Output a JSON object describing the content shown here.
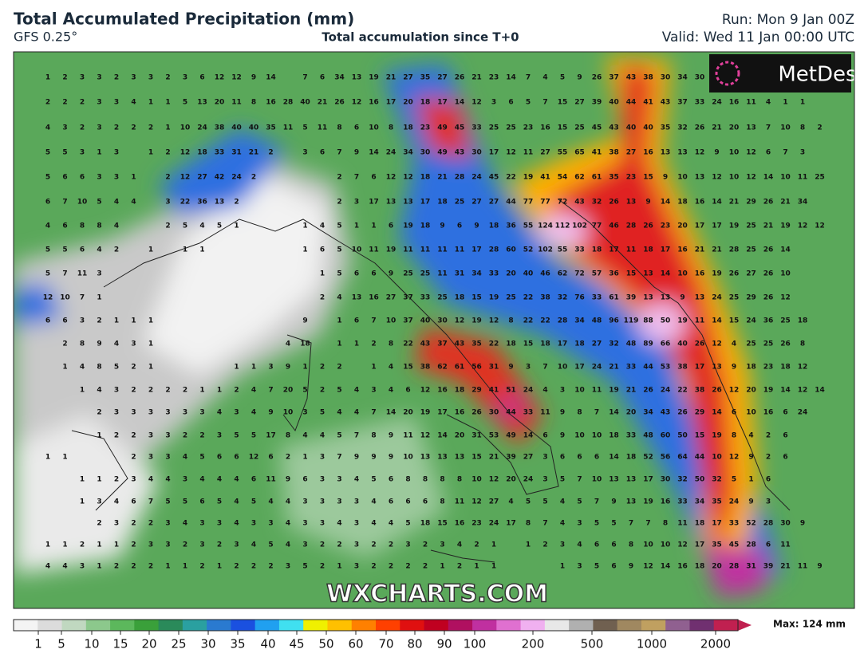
{
  "header": {
    "title": "Total Accumulated Precipitation (mm)",
    "model": "GFS 0.25°",
    "subtitle": "Total accumulation since T+0",
    "run": "Run: Mon 9 Jan 00Z",
    "valid": "Valid: Wed 11 Jan 00:00 UTC"
  },
  "logo": "MetDesk",
  "watermark": "WXCHARTS.COM",
  "map": {
    "rows": [
      [
        1,
        2,
        3,
        3,
        2,
        3,
        3,
        2,
        3,
        6,
        12,
        12,
        9,
        14,
        null,
        7,
        6,
        34,
        13,
        19,
        21,
        27,
        35,
        27,
        26,
        21,
        23,
        14,
        7,
        4,
        5,
        9,
        26,
        37,
        43,
        38,
        30,
        34,
        30
      ],
      [
        2,
        2,
        2,
        3,
        3,
        4,
        1,
        1,
        5,
        13,
        20,
        11,
        8,
        16,
        28,
        40,
        21,
        26,
        12,
        16,
        17,
        20,
        18,
        17,
        14,
        12,
        3,
        6,
        5,
        7,
        15,
        27,
        39,
        40,
        44,
        41,
        43,
        37,
        33,
        24,
        16,
        11,
        4,
        1,
        1
      ],
      [
        4,
        3,
        2,
        3,
        2,
        2,
        2,
        1,
        10,
        24,
        38,
        40,
        40,
        35,
        11,
        5,
        11,
        8,
        6,
        10,
        8,
        18,
        23,
        49,
        45,
        33,
        25,
        25,
        23,
        16,
        15,
        25,
        45,
        43,
        40,
        40,
        35,
        32,
        26,
        21,
        20,
        13,
        7,
        10,
        8,
        2
      ],
      [
        5,
        5,
        3,
        1,
        3,
        null,
        1,
        2,
        12,
        18,
        33,
        31,
        21,
        2,
        null,
        3,
        6,
        7,
        9,
        14,
        24,
        34,
        30,
        49,
        43,
        30,
        17,
        12,
        11,
        27,
        55,
        65,
        41,
        38,
        27,
        16,
        13,
        13,
        12,
        9,
        10,
        12,
        6,
        7,
        3
      ],
      [
        5,
        6,
        6,
        3,
        3,
        1,
        null,
        2,
        12,
        27,
        42,
        24,
        2,
        null,
        null,
        null,
        null,
        2,
        7,
        6,
        12,
        12,
        18,
        21,
        28,
        24,
        45,
        22,
        19,
        41,
        54,
        62,
        61,
        35,
        23,
        15,
        9,
        10,
        13,
        12,
        10,
        12,
        14,
        10,
        11,
        25
      ],
      [
        6,
        7,
        10,
        5,
        4,
        4,
        null,
        3,
        22,
        36,
        13,
        2,
        null,
        null,
        null,
        null,
        null,
        2,
        3,
        17,
        13,
        13,
        17,
        18,
        25,
        27,
        27,
        44,
        77,
        77,
        72,
        43,
        32,
        26,
        13,
        9,
        14,
        18,
        16,
        14,
        21,
        29,
        26,
        21,
        34
      ],
      [
        4,
        6,
        8,
        8,
        4,
        null,
        null,
        2,
        5,
        4,
        5,
        1,
        null,
        null,
        null,
        1,
        4,
        5,
        1,
        1,
        6,
        19,
        18,
        9,
        6,
        9,
        18,
        36,
        55,
        124,
        112,
        102,
        77,
        46,
        28,
        26,
        23,
        20,
        17,
        17,
        19,
        25,
        21,
        19,
        12,
        12
      ],
      [
        5,
        5,
        6,
        4,
        2,
        null,
        1,
        null,
        1,
        1,
        null,
        null,
        null,
        null,
        null,
        1,
        6,
        5,
        10,
        11,
        19,
        11,
        11,
        11,
        11,
        17,
        28,
        60,
        52,
        102,
        55,
        33,
        18,
        17,
        11,
        18,
        17,
        16,
        21,
        21,
        28,
        25,
        26,
        14
      ],
      [
        5,
        7,
        11,
        3,
        null,
        null,
        null,
        null,
        null,
        null,
        null,
        null,
        null,
        null,
        null,
        null,
        1,
        5,
        6,
        6,
        9,
        25,
        25,
        11,
        31,
        34,
        33,
        20,
        40,
        46,
        62,
        72,
        57,
        36,
        15,
        13,
        14,
        10,
        16,
        19,
        26,
        27,
        26,
        10
      ],
      [
        12,
        10,
        7,
        1,
        null,
        null,
        null,
        null,
        null,
        null,
        null,
        null,
        null,
        null,
        null,
        null,
        2,
        4,
        13,
        16,
        27,
        37,
        33,
        25,
        18,
        15,
        19,
        25,
        22,
        38,
        32,
        76,
        33,
        61,
        39,
        13,
        13,
        9,
        13,
        24,
        25,
        29,
        26,
        12
      ],
      [
        6,
        6,
        3,
        2,
        1,
        1,
        1,
        null,
        null,
        null,
        null,
        null,
        null,
        null,
        null,
        9,
        null,
        1,
        6,
        7,
        10,
        37,
        40,
        30,
        12,
        19,
        12,
        8,
        22,
        22,
        28,
        34,
        48,
        96,
        119,
        88,
        50,
        19,
        11,
        14,
        15,
        24,
        36,
        25,
        18
      ],
      [
        null,
        2,
        8,
        9,
        4,
        3,
        1,
        null,
        null,
        null,
        null,
        null,
        null,
        null,
        4,
        18,
        null,
        1,
        1,
        2,
        8,
        22,
        43,
        37,
        43,
        35,
        22,
        18,
        15,
        18,
        17,
        18,
        27,
        32,
        48,
        89,
        66,
        40,
        26,
        12,
        4,
        25,
        25,
        26,
        8
      ],
      [
        null,
        1,
        4,
        8,
        5,
        2,
        1,
        null,
        null,
        null,
        null,
        1,
        1,
        3,
        9,
        1,
        2,
        2,
        null,
        1,
        4,
        15,
        38,
        62,
        61,
        56,
        31,
        9,
        3,
        7,
        10,
        17,
        24,
        21,
        33,
        44,
        53,
        38,
        17,
        13,
        9,
        18,
        23,
        18,
        12
      ],
      [
        null,
        null,
        1,
        4,
        3,
        2,
        2,
        2,
        2,
        1,
        1,
        2,
        4,
        7,
        20,
        5,
        2,
        5,
        4,
        3,
        4,
        6,
        12,
        16,
        18,
        29,
        41,
        51,
        24,
        4,
        3,
        10,
        11,
        19,
        21,
        26,
        24,
        22,
        38,
        26,
        12,
        20,
        19,
        14,
        12,
        14
      ],
      [
        null,
        null,
        null,
        2,
        3,
        3,
        3,
        3,
        3,
        3,
        4,
        3,
        4,
        9,
        10,
        3,
        5,
        4,
        4,
        7,
        14,
        20,
        19,
        17,
        16,
        26,
        30,
        44,
        33,
        11,
        9,
        8,
        7,
        14,
        20,
        34,
        43,
        26,
        29,
        14,
        6,
        10,
        16,
        6,
        24
      ],
      [
        null,
        null,
        null,
        1,
        2,
        2,
        3,
        3,
        2,
        2,
        3,
        5,
        5,
        17,
        8,
        4,
        4,
        5,
        7,
        8,
        9,
        11,
        12,
        14,
        20,
        31,
        53,
        49,
        14,
        6,
        9,
        10,
        10,
        18,
        33,
        48,
        60,
        50,
        15,
        19,
        8,
        4,
        2,
        6
      ],
      [
        1,
        1,
        null,
        null,
        null,
        2,
        3,
        3,
        4,
        5,
        6,
        6,
        12,
        6,
        2,
        1,
        3,
        7,
        9,
        9,
        9,
        10,
        13,
        13,
        13,
        15,
        21,
        39,
        27,
        3,
        6,
        6,
        6,
        14,
        18,
        52,
        56,
        64,
        44,
        10,
        12,
        9,
        2,
        6
      ],
      [
        null,
        null,
        1,
        1,
        2,
        3,
        4,
        4,
        3,
        4,
        4,
        4,
        6,
        11,
        9,
        6,
        3,
        3,
        4,
        5,
        6,
        8,
        8,
        8,
        8,
        10,
        12,
        20,
        24,
        3,
        5,
        7,
        10,
        13,
        13,
        17,
        30,
        32,
        50,
        32,
        5,
        1,
        6
      ],
      [
        null,
        null,
        1,
        3,
        4,
        6,
        7,
        5,
        5,
        6,
        5,
        4,
        5,
        4,
        4,
        3,
        3,
        3,
        3,
        4,
        6,
        6,
        6,
        8,
        11,
        12,
        27,
        4,
        5,
        5,
        4,
        5,
        7,
        9,
        13,
        19,
        16,
        33,
        34,
        35,
        24,
        9,
        3
      ],
      [
        null,
        null,
        null,
        2,
        3,
        2,
        2,
        3,
        4,
        3,
        3,
        4,
        3,
        3,
        4,
        3,
        3,
        4,
        3,
        4,
        4,
        5,
        18,
        15,
        16,
        23,
        24,
        17,
        8,
        7,
        4,
        3,
        5,
        5,
        7,
        7,
        8,
        11,
        18,
        17,
        33,
        52,
        28,
        30,
        9
      ],
      [
        1,
        1,
        2,
        1,
        1,
        2,
        3,
        3,
        2,
        3,
        2,
        3,
        4,
        5,
        4,
        3,
        2,
        2,
        3,
        2,
        2,
        3,
        2,
        3,
        4,
        2,
        1,
        null,
        1,
        2,
        3,
        4,
        6,
        6,
        8,
        10,
        10,
        12,
        17,
        35,
        45,
        28,
        6,
        11
      ],
      [
        4,
        4,
        3,
        1,
        2,
        2,
        2,
        1,
        1,
        2,
        1,
        2,
        2,
        2,
        3,
        5,
        2,
        1,
        3,
        2,
        2,
        2,
        2,
        1,
        2,
        1,
        1,
        null,
        null,
        null,
        1,
        3,
        5,
        6,
        9,
        12,
        14,
        16,
        18,
        20,
        28,
        31,
        39,
        21,
        11,
        9
      ]
    ]
  },
  "legend": {
    "ticks": [
      1,
      5,
      10,
      15,
      20,
      25,
      30,
      35,
      40,
      45,
      50,
      60,
      70,
      80,
      90,
      100,
      200,
      500,
      1000,
      2000
    ],
    "max_label": "Max: 124 mm"
  }
}
